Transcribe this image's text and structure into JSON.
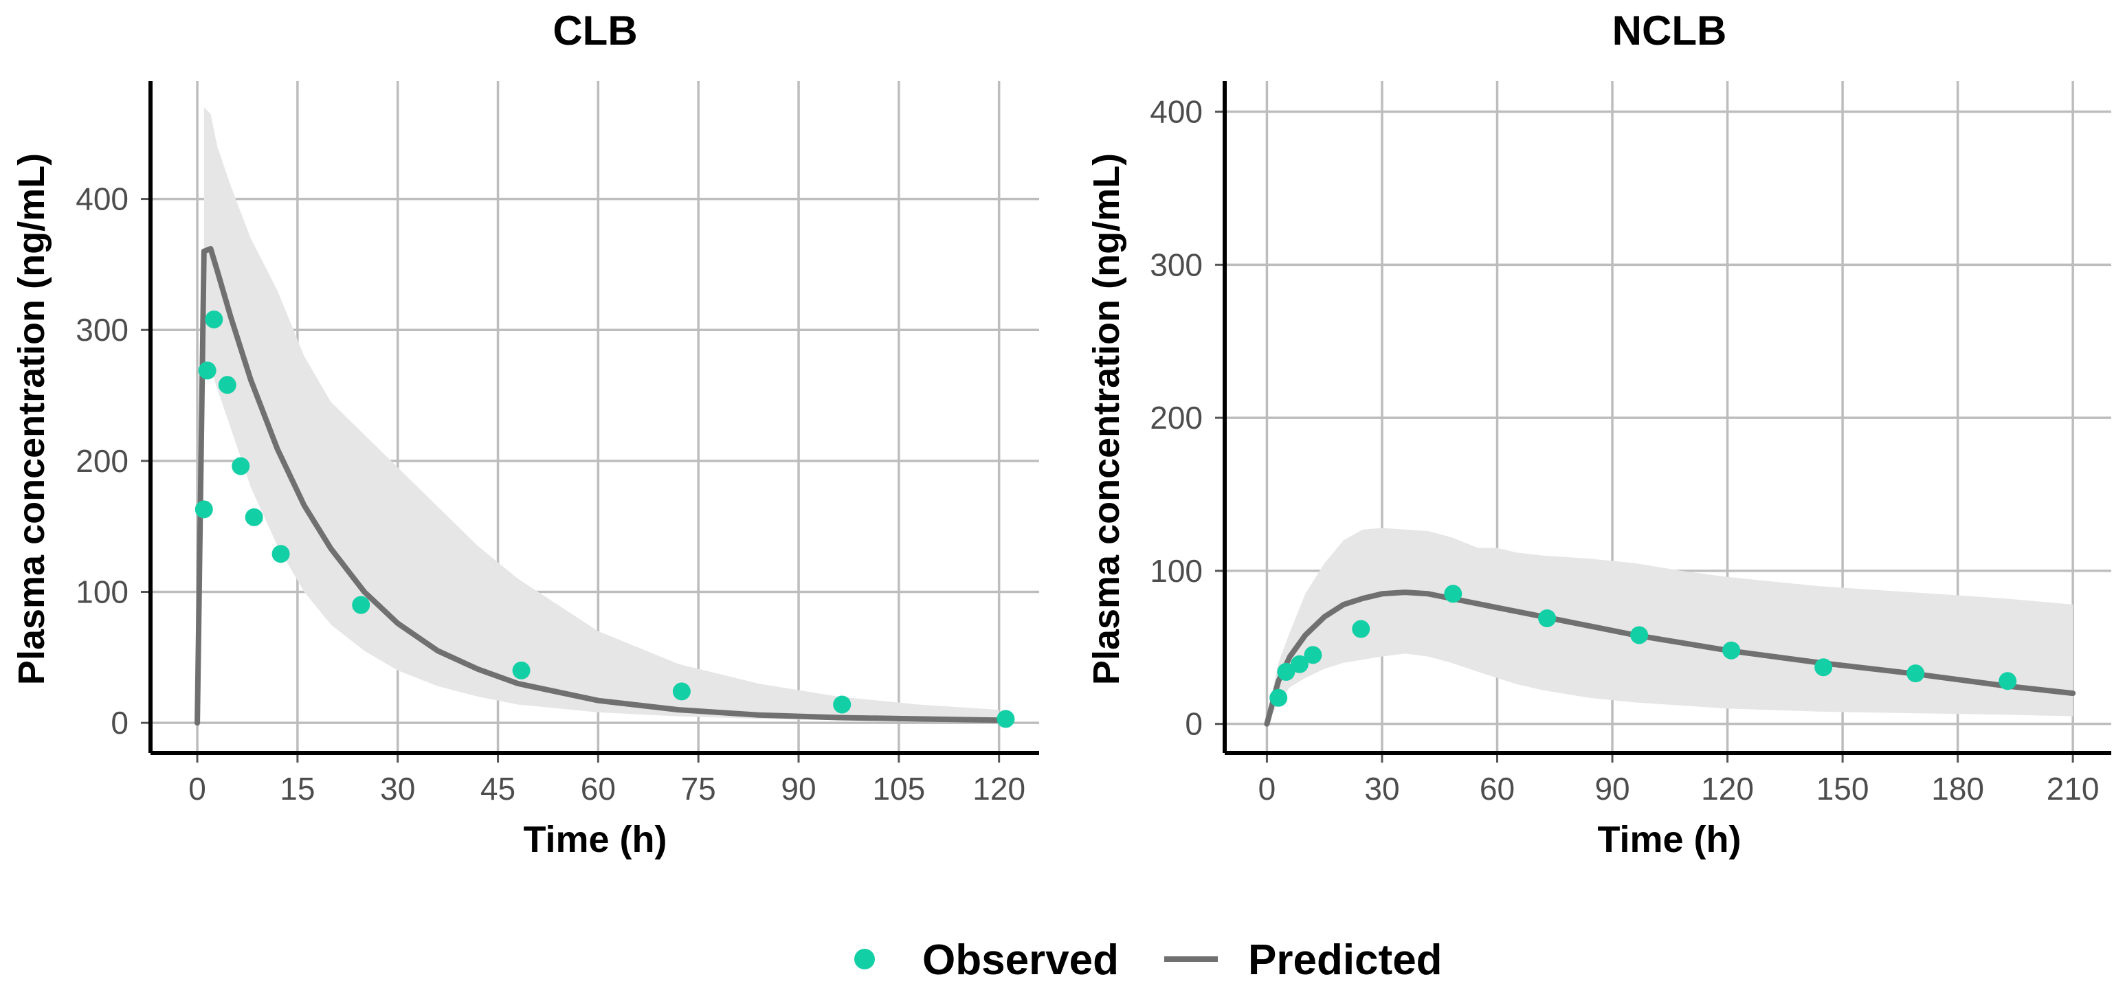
{
  "colors": {
    "observed": "#13cfa6",
    "predicted": "#707070",
    "band": "#e6e6e6"
  },
  "legend": {
    "observed_label": "Observed",
    "predicted_label": "Predicted"
  },
  "chart_data": [
    {
      "type": "line",
      "title": "CLB",
      "xlabel": "Time (h)",
      "ylabel": "Plasma concentration (ng/mL)",
      "xlim": [
        -7,
        126
      ],
      "ylim": [
        -23,
        490
      ],
      "xticks": [
        0,
        15,
        30,
        45,
        60,
        75,
        90,
        105,
        120
      ],
      "yticks": [
        0,
        100,
        200,
        300,
        400
      ],
      "observed": {
        "x": [
          1,
          1.5,
          2.5,
          4.5,
          6.5,
          8.5,
          12.5,
          24.5,
          48.5,
          72.5,
          96.5,
          121
        ],
        "y": [
          163,
          269,
          308,
          258,
          196,
          157,
          129,
          90,
          40,
          24,
          14,
          3
        ]
      },
      "predicted": {
        "x": [
          0,
          1,
          2,
          3,
          5,
          8,
          12,
          16,
          20,
          25,
          30,
          36,
          42,
          48,
          60,
          72,
          84,
          96,
          108,
          120
        ],
        "y": [
          0,
          360,
          362,
          345,
          310,
          262,
          209,
          166,
          133,
          100,
          76,
          55,
          41,
          30,
          17,
          10,
          6,
          4,
          3,
          2
        ]
      },
      "band": {
        "x": [
          1,
          2,
          3,
          5,
          8,
          12,
          16,
          20,
          25,
          30,
          36,
          42,
          48,
          60,
          72,
          84,
          96,
          108,
          120
        ],
        "upper": [
          470,
          465,
          440,
          410,
          370,
          330,
          280,
          245,
          220,
          195,
          165,
          135,
          110,
          70,
          45,
          30,
          20,
          14,
          10
        ],
        "lower": [
          270,
          270,
          255,
          225,
          180,
          135,
          100,
          75,
          55,
          40,
          28,
          20,
          14,
          8,
          5,
          3,
          2,
          1,
          1
        ]
      }
    },
    {
      "type": "line",
      "title": "NCLB",
      "xlabel": "Time (h)",
      "ylabel": "Plasma concentration (ng/mL)",
      "xlim": [
        -11,
        220
      ],
      "ylim": [
        -19,
        420
      ],
      "xticks": [
        0,
        30,
        60,
        90,
        120,
        150,
        180,
        210
      ],
      "yticks": [
        0,
        100,
        200,
        300,
        400
      ],
      "observed": {
        "x": [
          3,
          5,
          8.5,
          12,
          24.5,
          48.5,
          73,
          97,
          121,
          145,
          169,
          193
        ],
        "y": [
          17,
          34,
          39,
          45,
          62,
          85,
          69,
          58,
          48,
          37,
          33,
          28
        ]
      },
      "predicted": {
        "x": [
          0,
          3,
          6,
          10,
          15,
          20,
          25,
          30,
          36,
          42,
          48,
          60,
          72,
          84,
          96,
          108,
          120,
          144,
          168,
          192,
          210
        ],
        "y": [
          0,
          28,
          44,
          58,
          70,
          78,
          82,
          85,
          86,
          85,
          82,
          76,
          70,
          64,
          58,
          53,
          48,
          40,
          33,
          25,
          20
        ]
      },
      "band": {
        "x": [
          0,
          3,
          6,
          10,
          15,
          20,
          25,
          30,
          36,
          42,
          48,
          55,
          60,
          65,
          72,
          84,
          96,
          108,
          120,
          144,
          168,
          192,
          210
        ],
        "upper": [
          5,
          40,
          60,
          85,
          105,
          120,
          127,
          128,
          127,
          126,
          122,
          115,
          115,
          112,
          110,
          108,
          105,
          100,
          96,
          90,
          86,
          82,
          78
        ],
        "lower": [
          0,
          14,
          24,
          30,
          36,
          40,
          42,
          44,
          46,
          44,
          40,
          34,
          30,
          26,
          22,
          17,
          14,
          12,
          10,
          8,
          7,
          6,
          5
        ]
      }
    }
  ]
}
